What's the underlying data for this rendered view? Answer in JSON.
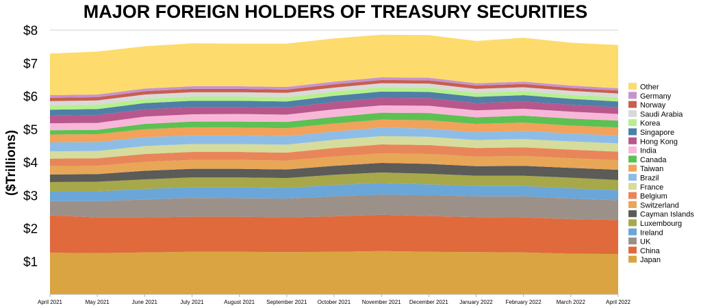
{
  "chart_data": {
    "type": "area",
    "stacked": true,
    "title": "MAJOR FOREIGN HOLDERS OF TREASURY SECURITIES",
    "xlabel": "",
    "ylabel": "($Trillions)",
    "ylim": [
      0,
      8
    ],
    "yticks": [
      1,
      2,
      3,
      4,
      5,
      6,
      7,
      8
    ],
    "ytick_labels": [
      "$1",
      "$2",
      "$3",
      "$4",
      "$5",
      "$6",
      "$7",
      "$8"
    ],
    "grid": true,
    "legend": "right",
    "x": [
      "April 2021",
      "May 2021",
      "June 2021",
      "July 2021",
      "August 2021",
      "September 2021",
      "October 2021",
      "November 2021",
      "December 2021",
      "January 2022",
      "February 2022",
      "March 2022",
      "April 2022"
    ],
    "series": [
      {
        "name": "Japan",
        "color": "#D9A441",
        "values": [
          1.26,
          1.25,
          1.27,
          1.29,
          1.29,
          1.28,
          1.29,
          1.31,
          1.29,
          1.28,
          1.27,
          1.23,
          1.22
        ]
      },
      {
        "name": "China",
        "color": "#E06A3C",
        "values": [
          1.13,
          1.08,
          1.06,
          1.06,
          1.06,
          1.05,
          1.07,
          1.1,
          1.08,
          1.06,
          1.06,
          1.05,
          1.03
        ]
      },
      {
        "name": "UK",
        "color": "#9C9189",
        "values": [
          0.43,
          0.49,
          0.54,
          0.57,
          0.56,
          0.57,
          0.61,
          0.61,
          0.63,
          0.63,
          0.64,
          0.62,
          0.6
        ]
      },
      {
        "name": "Ireland",
        "color": "#6AA6D8",
        "values": [
          0.3,
          0.3,
          0.32,
          0.32,
          0.33,
          0.32,
          0.34,
          0.35,
          0.33,
          0.31,
          0.31,
          0.31,
          0.3
        ]
      },
      {
        "name": "Luxembourg",
        "color": "#A7A84A",
        "values": [
          0.28,
          0.29,
          0.29,
          0.3,
          0.3,
          0.3,
          0.31,
          0.32,
          0.32,
          0.31,
          0.31,
          0.32,
          0.31
        ]
      },
      {
        "name": "Cayman Islands",
        "color": "#5B5B58",
        "values": [
          0.23,
          0.23,
          0.26,
          0.26,
          0.26,
          0.26,
          0.27,
          0.29,
          0.3,
          0.29,
          0.3,
          0.3,
          0.31
        ]
      },
      {
        "name": "Switzerland",
        "color": "#E8A657",
        "values": [
          0.25,
          0.25,
          0.27,
          0.27,
          0.27,
          0.27,
          0.28,
          0.29,
          0.3,
          0.29,
          0.3,
          0.29,
          0.29
        ]
      },
      {
        "name": "Belgium",
        "color": "#E8865A",
        "values": [
          0.23,
          0.23,
          0.24,
          0.24,
          0.24,
          0.24,
          0.26,
          0.27,
          0.27,
          0.26,
          0.26,
          0.26,
          0.26
        ]
      },
      {
        "name": "France",
        "color": "#D6DC9B",
        "values": [
          0.22,
          0.22,
          0.24,
          0.24,
          0.24,
          0.24,
          0.25,
          0.25,
          0.25,
          0.24,
          0.25,
          0.25,
          0.25
        ]
      },
      {
        "name": "Brazil",
        "color": "#8DBDE6",
        "values": [
          0.27,
          0.27,
          0.27,
          0.26,
          0.26,
          0.26,
          0.25,
          0.26,
          0.25,
          0.24,
          0.25,
          0.24,
          0.24
        ]
      },
      {
        "name": "Taiwan",
        "color": "#F2A25A",
        "values": [
          0.24,
          0.24,
          0.24,
          0.25,
          0.24,
          0.24,
          0.24,
          0.24,
          0.25,
          0.25,
          0.25,
          0.24,
          0.24
        ]
      },
      {
        "name": "Canada",
        "color": "#5CC152",
        "values": [
          0.13,
          0.13,
          0.16,
          0.17,
          0.18,
          0.19,
          0.2,
          0.21,
          0.22,
          0.2,
          0.21,
          0.21,
          0.21
        ]
      },
      {
        "name": "India",
        "color": "#F8B7D8",
        "values": [
          0.21,
          0.21,
          0.22,
          0.22,
          0.23,
          0.22,
          0.23,
          0.22,
          0.22,
          0.21,
          0.21,
          0.21,
          0.2
        ]
      },
      {
        "name": "Hong Kong",
        "color": "#B8578C",
        "values": [
          0.23,
          0.24,
          0.22,
          0.22,
          0.21,
          0.22,
          0.22,
          0.23,
          0.23,
          0.22,
          0.22,
          0.21,
          0.2
        ]
      },
      {
        "name": "Singapore",
        "color": "#4F7FA6",
        "values": [
          0.18,
          0.18,
          0.19,
          0.19,
          0.19,
          0.18,
          0.19,
          0.19,
          0.19,
          0.19,
          0.19,
          0.18,
          0.18
        ]
      },
      {
        "name": "Korea",
        "color": "#B5F08E",
        "values": [
          0.13,
          0.13,
          0.13,
          0.13,
          0.13,
          0.13,
          0.13,
          0.13,
          0.13,
          0.12,
          0.12,
          0.12,
          0.12
        ]
      },
      {
        "name": "Saudi Arabia",
        "color": "#D9D9D9",
        "values": [
          0.13,
          0.13,
          0.13,
          0.13,
          0.13,
          0.13,
          0.12,
          0.12,
          0.12,
          0.12,
          0.12,
          0.12,
          0.12
        ]
      },
      {
        "name": "Norway",
        "color": "#C85E4D",
        "values": [
          0.1,
          0.1,
          0.1,
          0.1,
          0.1,
          0.1,
          0.1,
          0.1,
          0.1,
          0.1,
          0.1,
          0.09,
          0.09
        ]
      },
      {
        "name": "Germany",
        "color": "#C693CF",
        "values": [
          0.08,
          0.08,
          0.08,
          0.08,
          0.08,
          0.08,
          0.08,
          0.08,
          0.08,
          0.07,
          0.07,
          0.07,
          0.07
        ]
      },
      {
        "name": "Other",
        "color": "#FDDB6D",
        "values": [
          1.26,
          1.3,
          1.28,
          1.3,
          1.29,
          1.31,
          1.31,
          1.29,
          1.29,
          1.28,
          1.33,
          1.3,
          1.31
        ]
      }
    ]
  }
}
